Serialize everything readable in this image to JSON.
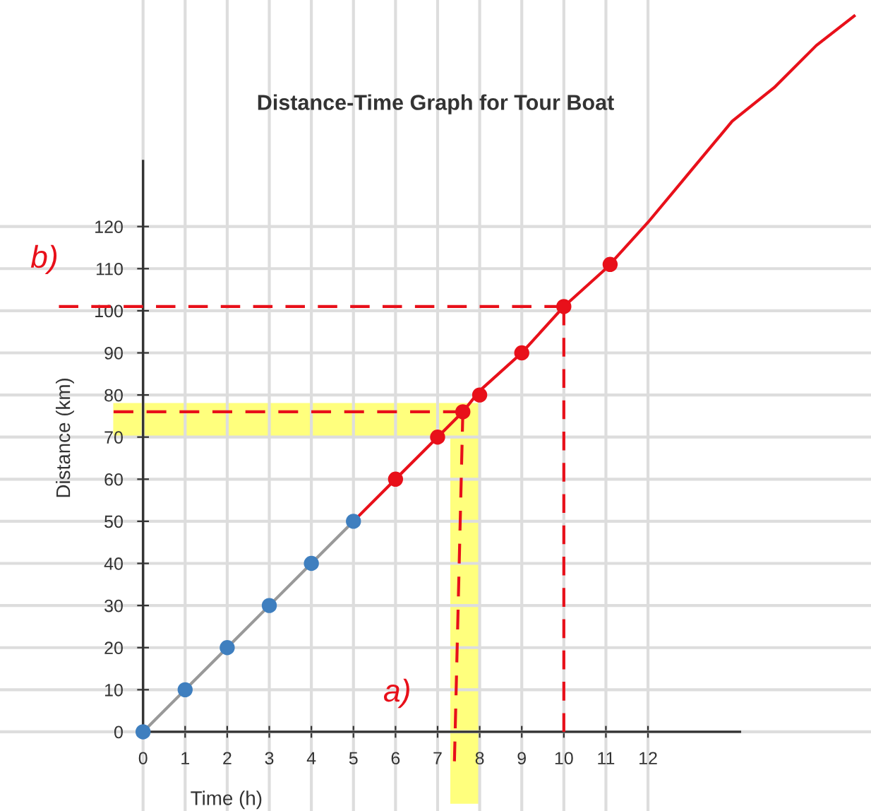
{
  "chart_data": {
    "type": "line",
    "title": "Distance-Time Graph for Tour Boat",
    "xlabel": "Time (h)",
    "ylabel": "Distance (km)",
    "xlim": [
      -3.4,
      17.3
    ],
    "ylim": [
      -18.8,
      173.8
    ],
    "xticks": [
      0,
      1,
      2,
      3,
      4,
      5,
      6,
      7,
      8,
      9,
      10,
      11,
      12
    ],
    "yticks": [
      0,
      10,
      20,
      30,
      40,
      50,
      60,
      70,
      80,
      90,
      100,
      110,
      120
    ],
    "grid": true,
    "legend": false,
    "series": [
      {
        "color": "#999999",
        "x": [
          0,
          1,
          2,
          3,
          4,
          5
        ],
        "values": [
          0,
          10,
          20,
          30,
          40,
          50
        ],
        "marker": "none",
        "line_style": "solid"
      },
      {
        "type": "scatter",
        "color": "#3f7fbf",
        "x": [
          0,
          1,
          2,
          3,
          4,
          5
        ],
        "values": [
          0,
          10,
          20,
          30,
          40,
          50
        ],
        "marker": "circle"
      },
      {
        "color": "#e8101a",
        "x": [
          5,
          6,
          7,
          7.6,
          8,
          9,
          10,
          11,
          12,
          13,
          14,
          15,
          16,
          16.9
        ],
        "values": [
          50,
          60,
          70,
          76,
          81,
          90,
          101,
          110,
          121,
          133,
          145,
          153,
          163,
          170
        ],
        "marker": "none",
        "line_style": "solid"
      },
      {
        "type": "scatter",
        "color": "#e8101a",
        "x": [
          6,
          7,
          7.6,
          8,
          9,
          10,
          11.1
        ],
        "values": [
          60,
          70,
          76,
          80,
          90,
          101,
          111
        ],
        "marker": "circle"
      },
      {
        "color": "#e8101a",
        "x": [
          -2,
          10
        ],
        "values": [
          101,
          101
        ],
        "marker": "none",
        "line_style": "dashed"
      },
      {
        "color": "#e8101a",
        "x": [
          10,
          10
        ],
        "values": [
          101,
          0
        ],
        "marker": "none",
        "line_style": "dashed"
      },
      {
        "color": "#e8101a",
        "x": [
          -0.7,
          7.6
        ],
        "values": [
          76,
          76
        ],
        "marker": "none",
        "line_style": "dashed"
      },
      {
        "color": "#e8101a",
        "x": [
          7.6,
          7.4
        ],
        "values": [
          76,
          -7
        ],
        "marker": "none",
        "line_style": "dashed"
      }
    ],
    "annotations": [
      "a)",
      "b)"
    ]
  }
}
